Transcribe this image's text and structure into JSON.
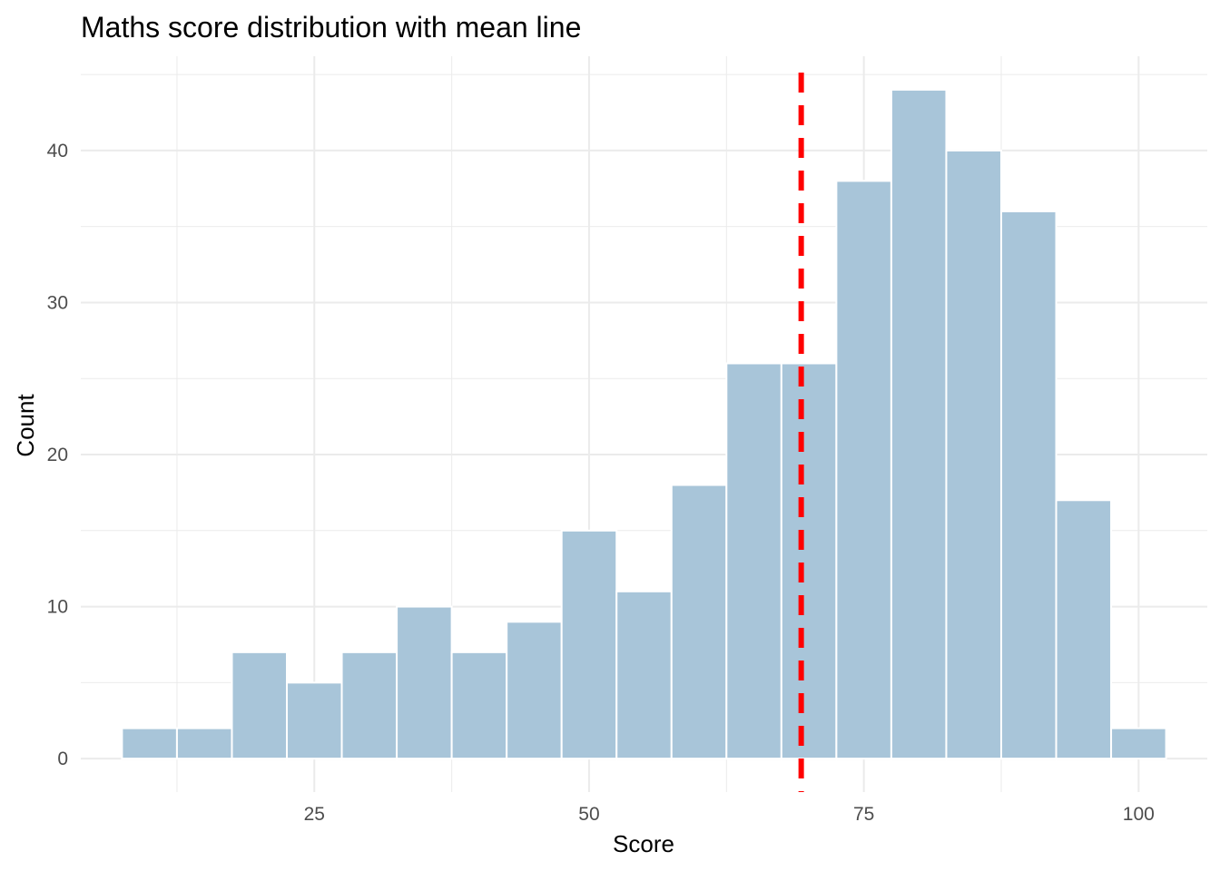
{
  "chart_data": {
    "type": "bar",
    "title": "Maths score distribution with mean line",
    "xlabel": "Score",
    "ylabel": "Count",
    "bin_width": 5,
    "bins": [
      {
        "x0": 7.5,
        "x1": 12.5,
        "count": 2
      },
      {
        "x0": 12.5,
        "x1": 17.5,
        "count": 2
      },
      {
        "x0": 17.5,
        "x1": 22.5,
        "count": 7
      },
      {
        "x0": 22.5,
        "x1": 27.5,
        "count": 5
      },
      {
        "x0": 27.5,
        "x1": 32.5,
        "count": 7
      },
      {
        "x0": 32.5,
        "x1": 37.5,
        "count": 10
      },
      {
        "x0": 37.5,
        "x1": 42.5,
        "count": 7
      },
      {
        "x0": 42.5,
        "x1": 47.5,
        "count": 9
      },
      {
        "x0": 47.5,
        "x1": 52.5,
        "count": 15
      },
      {
        "x0": 52.5,
        "x1": 57.5,
        "count": 11
      },
      {
        "x0": 57.5,
        "x1": 62.5,
        "count": 18
      },
      {
        "x0": 62.5,
        "x1": 67.5,
        "count": 26
      },
      {
        "x0": 67.5,
        "x1": 72.5,
        "count": 26
      },
      {
        "x0": 72.5,
        "x1": 77.5,
        "count": 38
      },
      {
        "x0": 77.5,
        "x1": 82.5,
        "count": 44
      },
      {
        "x0": 82.5,
        "x1": 87.5,
        "count": 40
      },
      {
        "x0": 87.5,
        "x1": 92.5,
        "count": 36
      },
      {
        "x0": 92.5,
        "x1": 97.5,
        "count": 17
      },
      {
        "x0": 97.5,
        "x1": 102.5,
        "count": 2
      }
    ],
    "mean": 69.3,
    "xlim": [
      3.75,
      106.25
    ],
    "ylim": [
      -2.2,
      46.2
    ],
    "x_ticks": [
      25,
      50,
      75,
      100
    ],
    "x_tick_labels": [
      "25",
      "50",
      "75",
      "100"
    ],
    "y_ticks": [
      0,
      10,
      20,
      30,
      40
    ],
    "y_tick_labels": [
      "0",
      "10",
      "20",
      "30",
      "40"
    ],
    "grid": true,
    "colors": {
      "bar_fill": "#a8c5d9",
      "bar_border": "#ffffff",
      "mean_line": "#ff0000",
      "grid": "#ebebeb",
      "tick_text": "#4d4d4d",
      "background": "#ffffff"
    }
  }
}
